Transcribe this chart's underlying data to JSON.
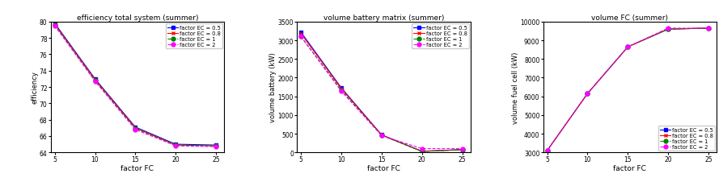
{
  "x": [
    5,
    10,
    15,
    20,
    25
  ],
  "plots": [
    {
      "title": "efficiency total system (summer)",
      "xlabel": "factor FC",
      "ylabel": "efficiency",
      "ylim": [
        64,
        80
      ],
      "yticks": [
        64,
        66,
        68,
        70,
        72,
        74,
        76,
        78,
        80
      ],
      "legend_loc": "upper right",
      "series": [
        {
          "label": "factor EC = 0.5",
          "color": "blue",
          "marker": "s",
          "linestyle": "-",
          "values": [
            79.8,
            73.0,
            67.1,
            65.0,
            64.9
          ]
        },
        {
          "label": "factor EC = 0.8",
          "color": "red",
          "marker": "x",
          "linestyle": "-",
          "values": [
            79.7,
            72.9,
            67.0,
            64.9,
            64.8
          ]
        },
        {
          "label": "factor EC = 1",
          "color": "green",
          "marker": "o",
          "linestyle": "--",
          "values": [
            79.6,
            72.8,
            66.9,
            64.9,
            64.8
          ]
        },
        {
          "label": "factor EC = 2",
          "color": "magenta",
          "marker": "o",
          "linestyle": "--",
          "values": [
            79.5,
            72.7,
            66.8,
            64.8,
            64.7
          ]
        }
      ]
    },
    {
      "title": "volume battery matrix (summer)",
      "xlabel": "factor FC",
      "ylabel": "volume battery (kW)",
      "ylim": [
        0,
        3500
      ],
      "yticks": [
        0,
        500,
        1000,
        1500,
        2000,
        2500,
        3000,
        3500
      ],
      "legend_loc": "upper right",
      "series": [
        {
          "label": "factor EC = 0.5",
          "color": "blue",
          "marker": "s",
          "linestyle": "-",
          "values": [
            3220,
            1730,
            470,
            30,
            75
          ]
        },
        {
          "label": "factor EC = 0.8",
          "color": "red",
          "marker": "x",
          "linestyle": "-",
          "values": [
            3180,
            1710,
            465,
            28,
            73
          ]
        },
        {
          "label": "factor EC = 1",
          "color": "green",
          "marker": "o",
          "linestyle": "--",
          "values": [
            3100,
            1670,
            455,
            25,
            70
          ]
        },
        {
          "label": "factor EC = 2",
          "color": "magenta",
          "marker": "o",
          "linestyle": "--",
          "values": [
            3100,
            1640,
            450,
            100,
            100
          ]
        }
      ]
    },
    {
      "title": "volume FC (summer)",
      "xlabel": "factor FC",
      "ylabel": "volume fuel cell (kW)",
      "ylim": [
        3000,
        10000
      ],
      "yticks": [
        3000,
        4000,
        5000,
        6000,
        7000,
        8000,
        9000,
        10000
      ],
      "legend_loc": "lower right",
      "series": [
        {
          "label": "factor EC = 0.5",
          "color": "blue",
          "marker": "s",
          "linestyle": "-",
          "values": [
            3100,
            6150,
            8650,
            9600,
            9650
          ]
        },
        {
          "label": "factor EC = 0.8",
          "color": "red",
          "marker": "x",
          "linestyle": "-",
          "values": [
            3100,
            6150,
            8650,
            9600,
            9650
          ]
        },
        {
          "label": "factor EC = 1",
          "color": "green",
          "marker": "o",
          "linestyle": "--",
          "values": [
            3100,
            6150,
            8650,
            9600,
            9650
          ]
        },
        {
          "label": "factor EC = 2",
          "color": "magenta",
          "marker": "o",
          "linestyle": "--",
          "values": [
            3100,
            6150,
            8650,
            9650,
            9650
          ]
        }
      ]
    }
  ]
}
